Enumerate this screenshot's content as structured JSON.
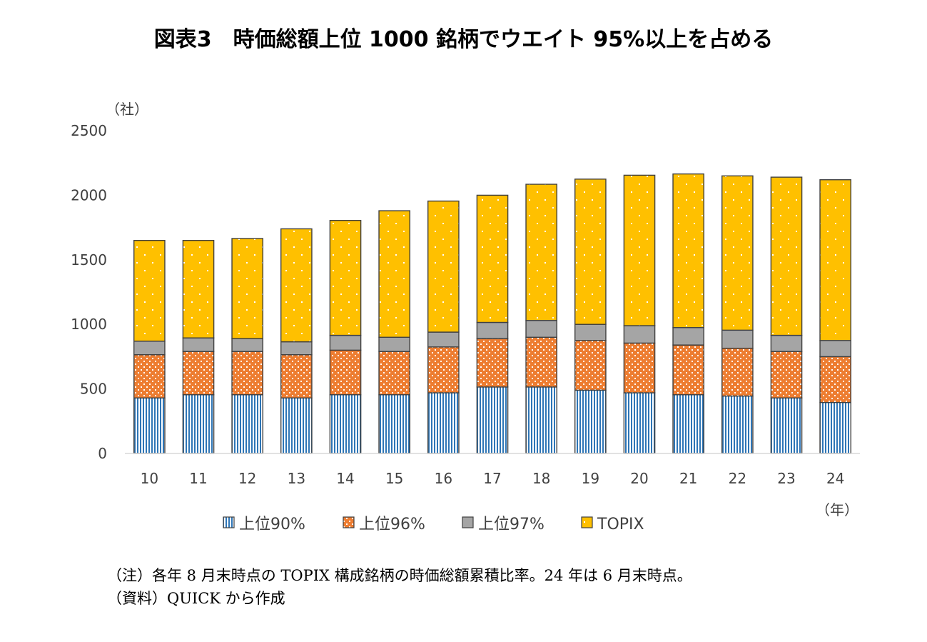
{
  "title": "図表3　時価総額上位 1000 銘柄でウエイト 95%以上を占める",
  "chart_data": {
    "type": "bar",
    "stacked": true,
    "categories": [
      "10",
      "11",
      "12",
      "13",
      "14",
      "15",
      "16",
      "17",
      "18",
      "19",
      "20",
      "21",
      "22",
      "23",
      "24"
    ],
    "series": [
      {
        "name": "上位90%",
        "color": "#2E75B6",
        "values": [
          430,
          455,
          455,
          430,
          455,
          455,
          470,
          515,
          515,
          490,
          470,
          455,
          445,
          430,
          395
        ]
      },
      {
        "name": "上位96%",
        "color": "#ED7D31",
        "values": [
          335,
          335,
          335,
          335,
          345,
          335,
          355,
          375,
          385,
          385,
          385,
          385,
          370,
          360,
          355
        ]
      },
      {
        "name": "上位97%",
        "color": "#A5A5A5",
        "values": [
          105,
          105,
          100,
          100,
          115,
          110,
          115,
          125,
          130,
          125,
          135,
          135,
          140,
          125,
          125
        ]
      },
      {
        "name": "TOPIX",
        "color": "#FFC000",
        "values": [
          780,
          755,
          775,
          875,
          890,
          980,
          1015,
          985,
          1055,
          1125,
          1165,
          1190,
          1195,
          1225,
          1245
        ]
      }
    ],
    "y_unit": "（社）",
    "x_unit": "（年）",
    "ylim": [
      0,
      2500
    ],
    "yticks": [
      "0",
      "500",
      "1000",
      "1500",
      "2000",
      "2500"
    ],
    "grid": false,
    "legend_position": "bottom"
  },
  "notes": [
    "（注）各年 8 月末時点の TOPIX 構成銘柄の時価総額累積比率。24 年は 6 月末時点。",
    "（資料）QUICK から作成"
  ]
}
